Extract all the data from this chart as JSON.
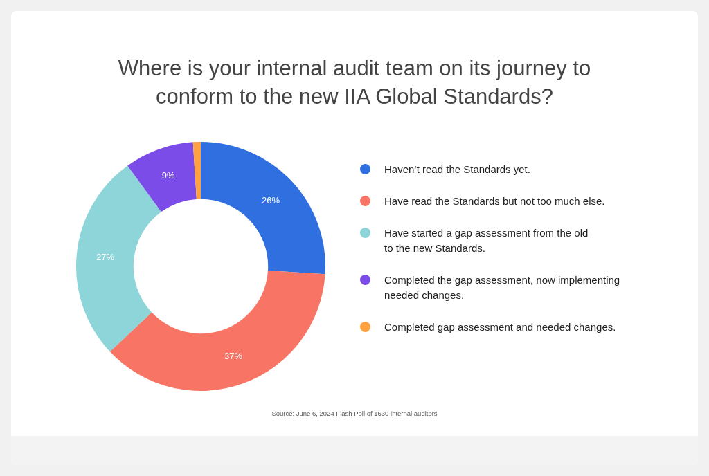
{
  "chart_data": {
    "type": "donut",
    "title": "Where is your internal audit team on its journey to conform to the new IIA Global Standards?",
    "categories": [
      "Haven’t read the Standards yet.",
      "Have read the Standards but not too much else.",
      "Have started a gap assessment from the old to the new Standards.",
      "Completed the gap assessment, now implementing needed changes.",
      "Completed gap assessment and needed changes."
    ],
    "values": [
      26,
      37,
      27,
      9,
      1
    ],
    "value_labels": [
      "26%",
      "37%",
      "27%",
      "9%",
      null
    ],
    "colors": [
      "#2f6fe0",
      "#f87565",
      "#8dd5d8",
      "#7b4ce8",
      "#ffa23f"
    ],
    "legend": "right",
    "annotations": [
      "Source: June 6, 2024 Flash Poll of 1630 internal auditors"
    ]
  }
}
